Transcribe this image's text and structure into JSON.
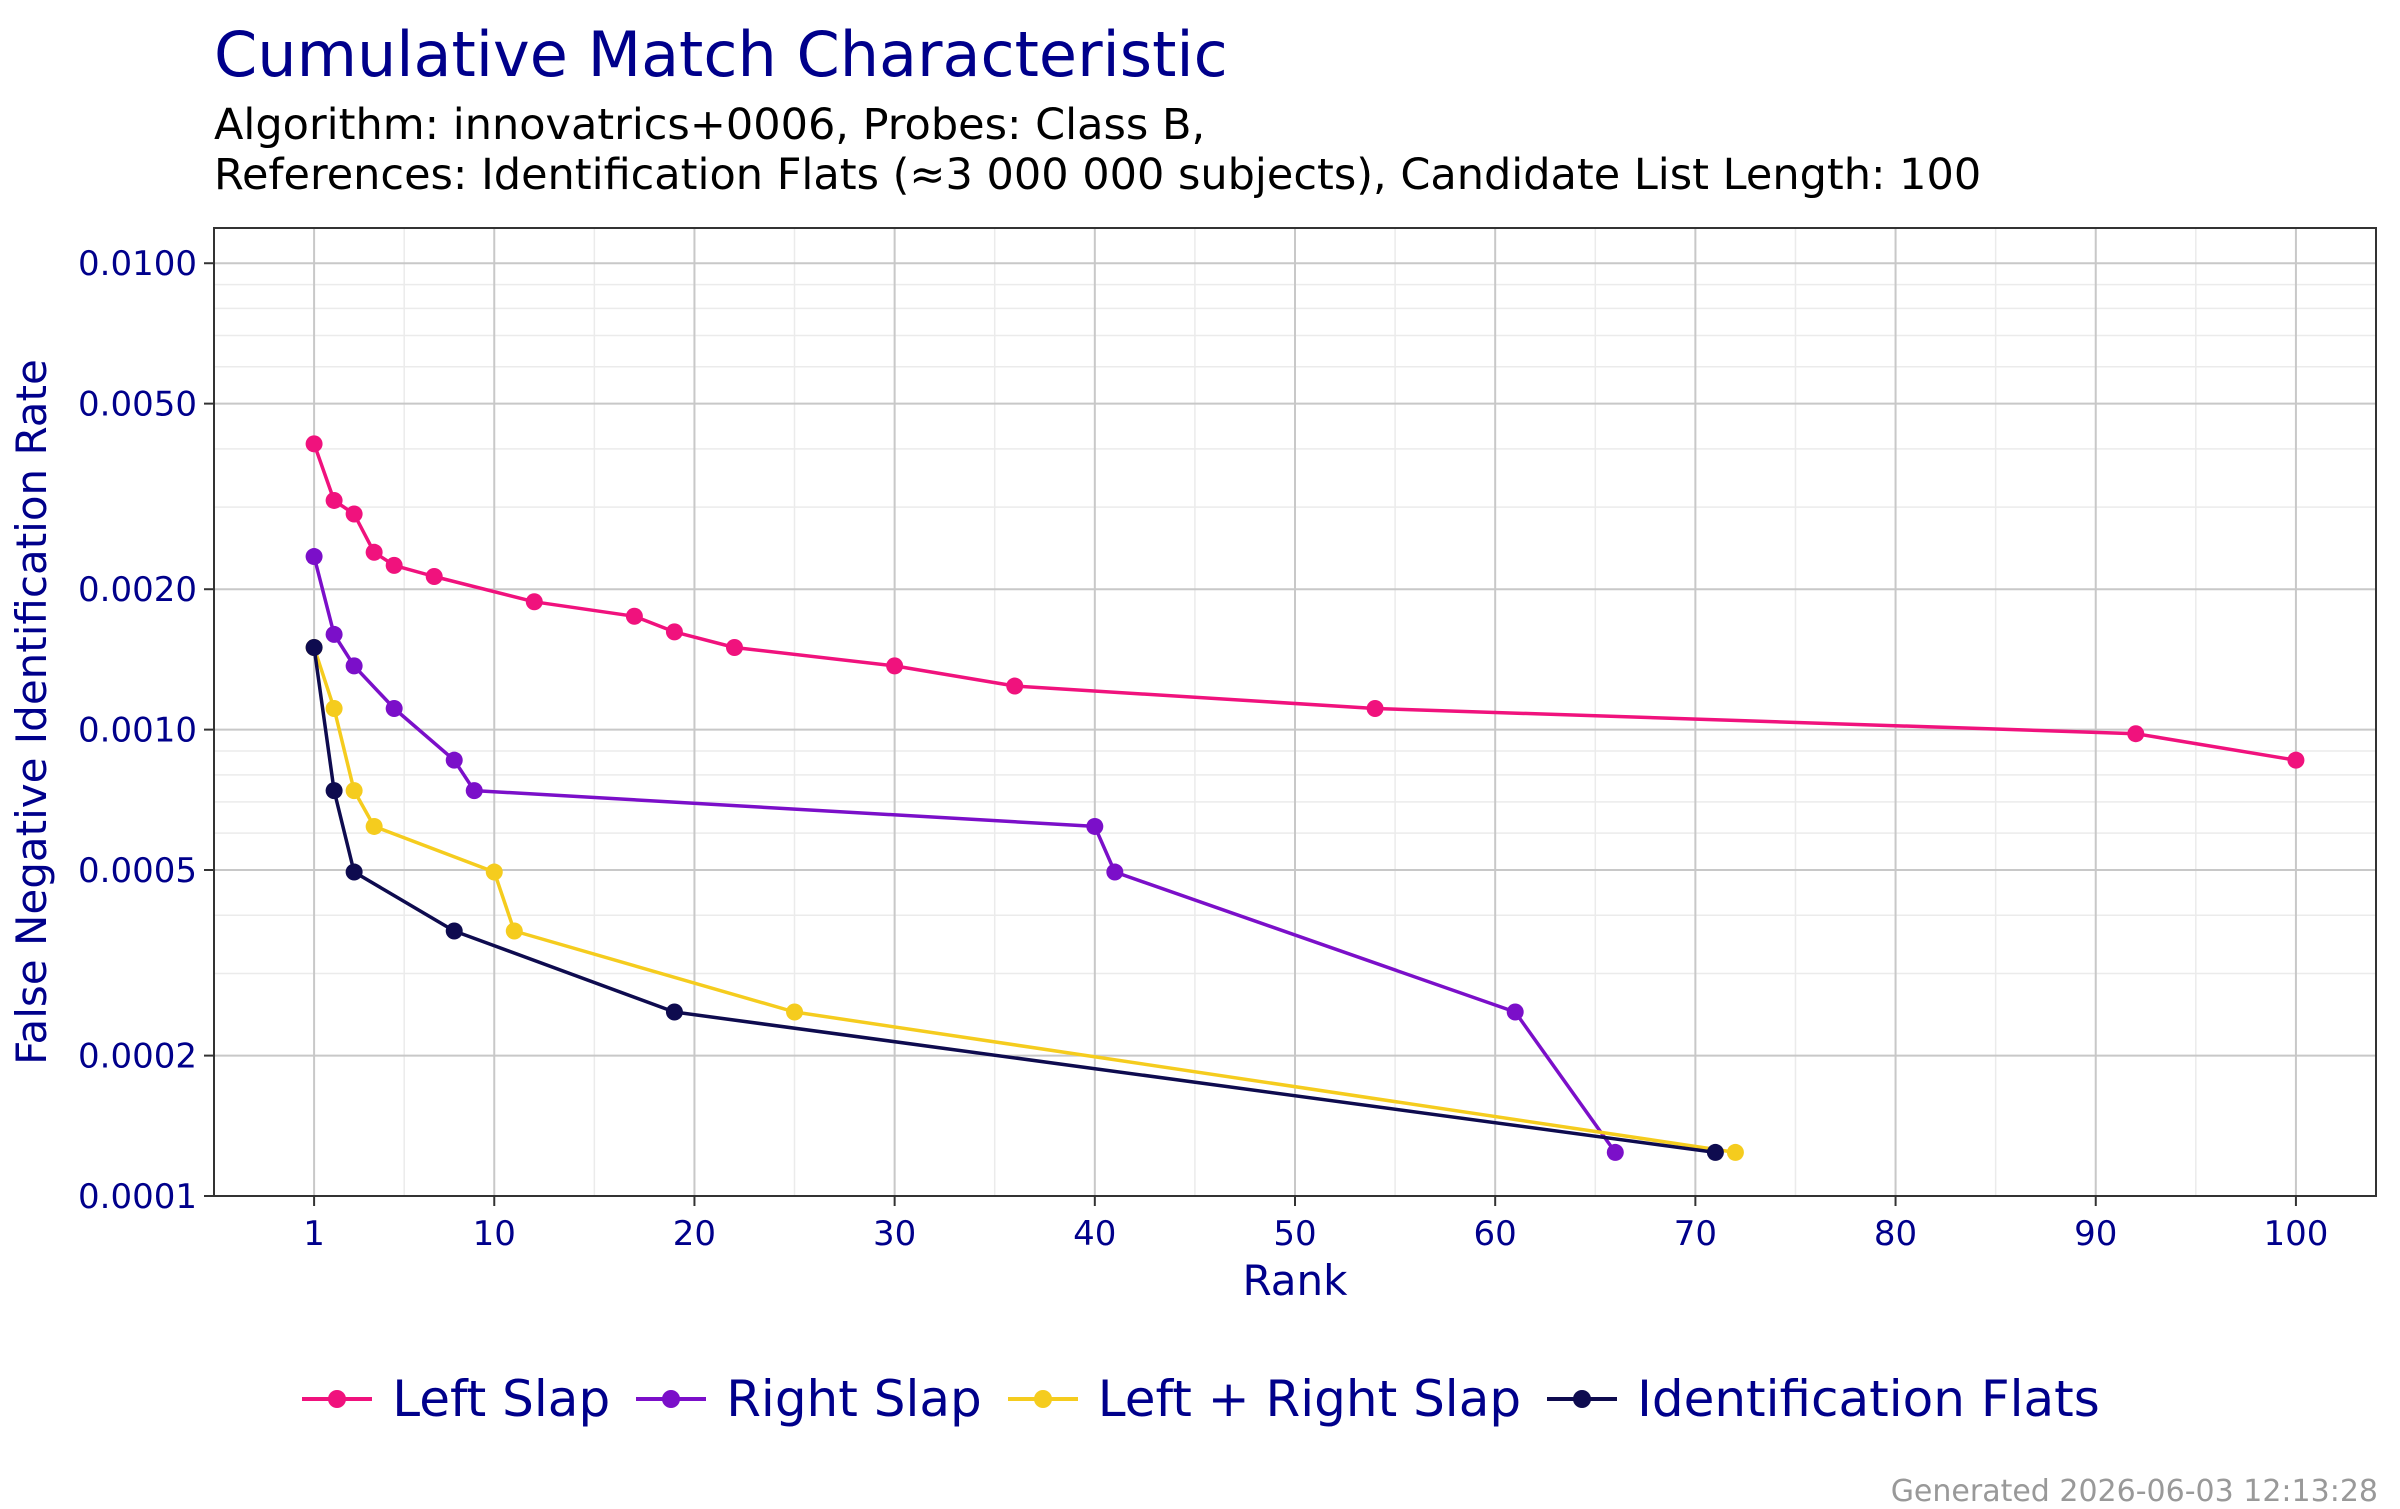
{
  "chart_data": {
    "type": "line",
    "title": "Cumulative Match Characteristic",
    "subtitle_line1": "Algorithm: innovatrics+0006, Probes: Class B,",
    "subtitle_line2": "References: Identification Flats (≈3 000 000 subjects), Candidate List Length: 100",
    "xlabel": "Rank",
    "ylabel": "False Negative Identification Rate",
    "xlim": [
      -4,
      104
    ],
    "ylim": [
      0.0001,
      0.0119
    ],
    "yscale": "log",
    "xticks": [
      1,
      10,
      20,
      30,
      40,
      50,
      60,
      70,
      80,
      90,
      100
    ],
    "yticks": [
      0.0001,
      0.0002,
      0.0005,
      0.001,
      0.002,
      0.005,
      0.01
    ],
    "ytick_labels": [
      "0.0001",
      "0.0002",
      "0.0005",
      "0.0010",
      "0.0020",
      "0.0050",
      "0.0100"
    ],
    "grid": true,
    "legend_position": "bottom",
    "series": [
      {
        "name": "Left Slap",
        "color": "#F0127D",
        "x": [
          1,
          2,
          3,
          4,
          5,
          7,
          12,
          17,
          19,
          22,
          30,
          36,
          54,
          92,
          100
        ],
        "y": [
          0.0041,
          0.0031,
          0.0029,
          0.0024,
          0.00225,
          0.00213,
          0.00188,
          0.00175,
          0.00162,
          0.0015,
          0.00137,
          0.00124,
          0.00111,
          0.00098,
          0.00086
        ]
      },
      {
        "name": "Right Slap",
        "color": "#7B0FC9",
        "x": [
          1,
          2,
          3,
          5,
          8,
          9,
          40,
          41,
          61,
          66
        ],
        "y": [
          0.00235,
          0.0016,
          0.00137,
          0.00111,
          0.00086,
          0.00074,
          0.00062,
          0.000495,
          0.000248,
          0.000124
        ]
      },
      {
        "name": "Left + Right Slap",
        "color": "#F5CC1E",
        "x": [
          1,
          2,
          3,
          4,
          10,
          11,
          25,
          72
        ],
        "y": [
          0.0015,
          0.00111,
          0.00074,
          0.00062,
          0.000495,
          0.00037,
          0.000248,
          0.000124
        ]
      },
      {
        "name": "Identification Flats",
        "color": "#0E0B4F",
        "x": [
          1,
          2,
          3,
          8,
          19,
          71
        ],
        "y": [
          0.0015,
          0.00074,
          0.000495,
          0.00037,
          0.000248,
          0.000124
        ]
      }
    ]
  },
  "footer": "Generated 2026-06-03 12:13:28",
  "colors": {
    "title": "#00008B",
    "axis_text": "#00008B",
    "grid_major": "#C8C8C8",
    "grid_minor": "#EBEBEB"
  }
}
